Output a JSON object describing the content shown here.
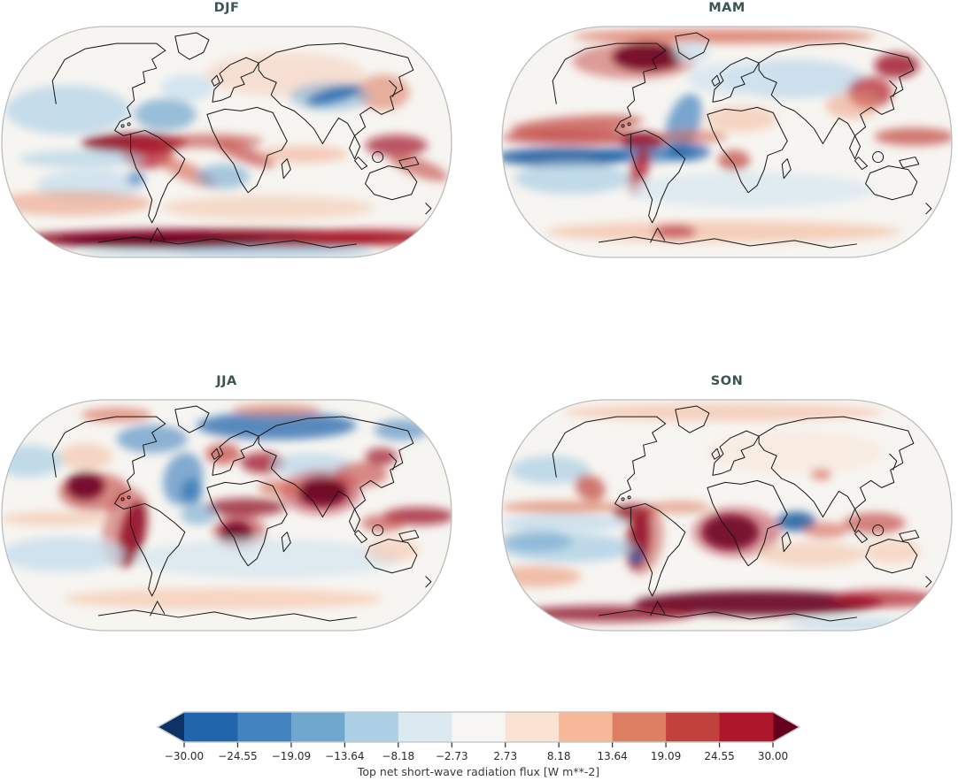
{
  "figure": {
    "background": "#ffffff",
    "title_color": "#3a5653",
    "panels": [
      {
        "id": "djf",
        "title": "DJF"
      },
      {
        "id": "mam",
        "title": "MAM"
      },
      {
        "id": "jja",
        "title": "JJA"
      },
      {
        "id": "son",
        "title": "SON"
      }
    ],
    "colorbar": {
      "label": "Top net short-wave radiation flux [W m**-2]",
      "tick_labels": [
        "−30.00",
        "−24.55",
        "−19.09",
        "−13.64",
        "−8.18",
        "−2.73",
        "2.73",
        "8.18",
        "13.64",
        "19.09",
        "24.55",
        "30.00"
      ],
      "segment_colors": [
        "#2166ac",
        "#4383bf",
        "#6fa7cf",
        "#abcfe4",
        "#dbe9f1",
        "#f7f6f4",
        "#fbe3d4",
        "#f7b89a",
        "#dd7f63",
        "#c1413d",
        "#ad162b"
      ],
      "extend_left_color": "#0d3266",
      "extend_right_color": "#67001f",
      "outline_color": "#c8c8c8",
      "tick_color": "#2a2a2a",
      "label_color": "#3a3a3a"
    }
  },
  "chart_data": {
    "type": "heatmap",
    "subtype": "filled-contour global maps, Robinson projection, 2x2 seasonal panels",
    "panels": [
      "DJF",
      "MAM",
      "JJA",
      "SON"
    ],
    "variable": "Top net short-wave radiation flux",
    "units": "W m**-2",
    "colorbar_label": "Top net short-wave radiation flux [W m**-2]",
    "levels": [
      -30.0,
      -24.55,
      -19.09,
      -13.64,
      -8.18,
      -2.73,
      2.73,
      8.18,
      13.64,
      19.09,
      24.55,
      30.0
    ],
    "value_range": [
      -30,
      30
    ],
    "extend": "both",
    "colormap": [
      "#0d3266",
      "#2166ac",
      "#4383bf",
      "#6fa7cf",
      "#abcfe4",
      "#dbe9f1",
      "#f7f6f4",
      "#fbe3d4",
      "#f7b89a",
      "#dd7f63",
      "#c1413d",
      "#ad162b",
      "#67001f"
    ],
    "legend_position": "bottom",
    "grid": false
  }
}
